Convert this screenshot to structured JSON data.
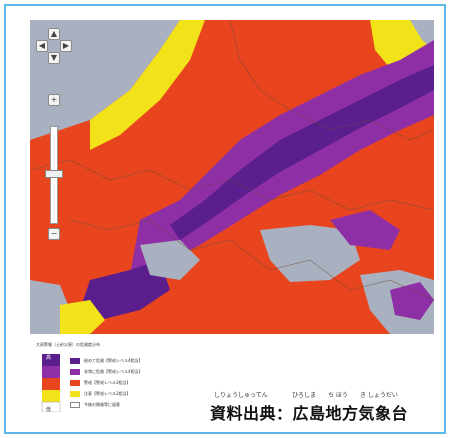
{
  "legend": {
    "title": "大雨警報（土砂災害）の危険度分布",
    "scale_top": "高",
    "scale_bottom": "低",
    "items": [
      {
        "label": "極めて危険【警戒レベル4相当】",
        "color": "#5a1f8c"
      },
      {
        "label": "非常に危険【警戒レベル4相当】",
        "color": "#8e2fa6"
      },
      {
        "label": "警戒【警戒レベル3相当】",
        "color": "#e8451f"
      },
      {
        "label": "注意【警戒レベル2相当】",
        "color": "#f2e21a"
      },
      {
        "label": "今後の情報等に留意",
        "color": "#ffffff"
      }
    ]
  },
  "source": {
    "text": "資料出典：広島地方気象台",
    "furigana": {
      "shiryou": "しりょうしゅってん",
      "hiroshima": "ひろしま",
      "chihou": "ち ほう",
      "kishou": "き しょうだい"
    }
  },
  "map_controls": {
    "pan_up": "▲",
    "pan_down": "▼",
    "pan_left": "◀",
    "pan_right": "▶",
    "zoom_in": "+",
    "zoom_out": "−"
  },
  "colors": {
    "purple_dark": "#5a1f8c",
    "purple": "#8e2fa6",
    "orange": "#e8451f",
    "yellow": "#f2e21a",
    "gray": "#a9b0bf",
    "frame": "#5bb7e6"
  }
}
